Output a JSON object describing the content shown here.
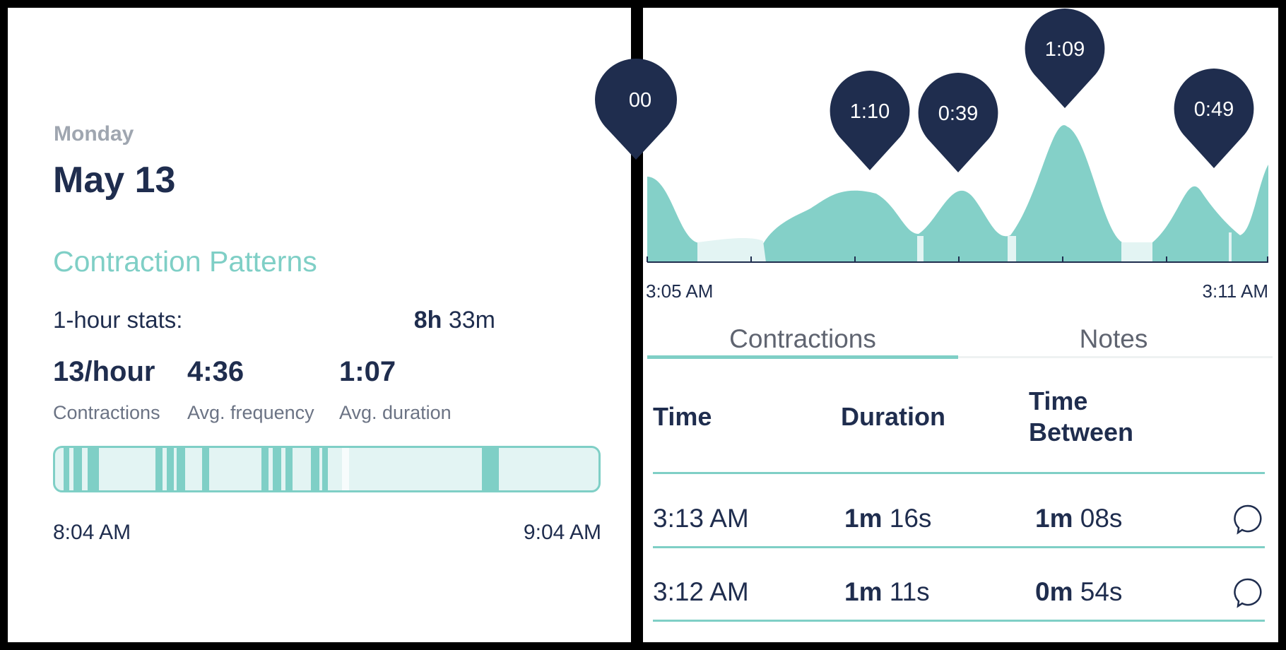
{
  "summary": {
    "day": "Monday",
    "date": "May 13",
    "section_title": "Contraction Patterns",
    "stats_label": "1-hour stats:",
    "elapsed_hours": "8h",
    "elapsed_minutes": "33m",
    "stats": [
      {
        "value": "13/hour",
        "label": "Contractions"
      },
      {
        "value": "4:36",
        "label": "Avg. frequency"
      },
      {
        "value": "1:07",
        "label": "Avg. duration"
      }
    ],
    "range_start": "8:04 AM",
    "range_end": "9:04 AM"
  },
  "chart": {
    "markers": [
      "00",
      "1:10",
      "0:39",
      "1:09",
      "0:49"
    ],
    "axis_start": "3:05 AM",
    "axis_end": "3:11 AM"
  },
  "tabs": {
    "active": "Contractions",
    "other": "Notes"
  },
  "table": {
    "headers": {
      "time": "Time",
      "duration": "Duration",
      "between_line1": "Time",
      "between_line2": "Between"
    },
    "rows": [
      {
        "time": "3:13 AM",
        "dur_min": "1m",
        "dur_sec": "16s",
        "between_min": "1m",
        "between_sec": "08s"
      },
      {
        "time": "3:12 AM",
        "dur_min": "1m",
        "dur_sec": "11s",
        "between_min": "0m",
        "between_sec": "54s"
      }
    ]
  },
  "colors": {
    "accent": "#7fcfc6",
    "navy": "#1f2d4e",
    "light_fill": "#e3f4f3"
  }
}
